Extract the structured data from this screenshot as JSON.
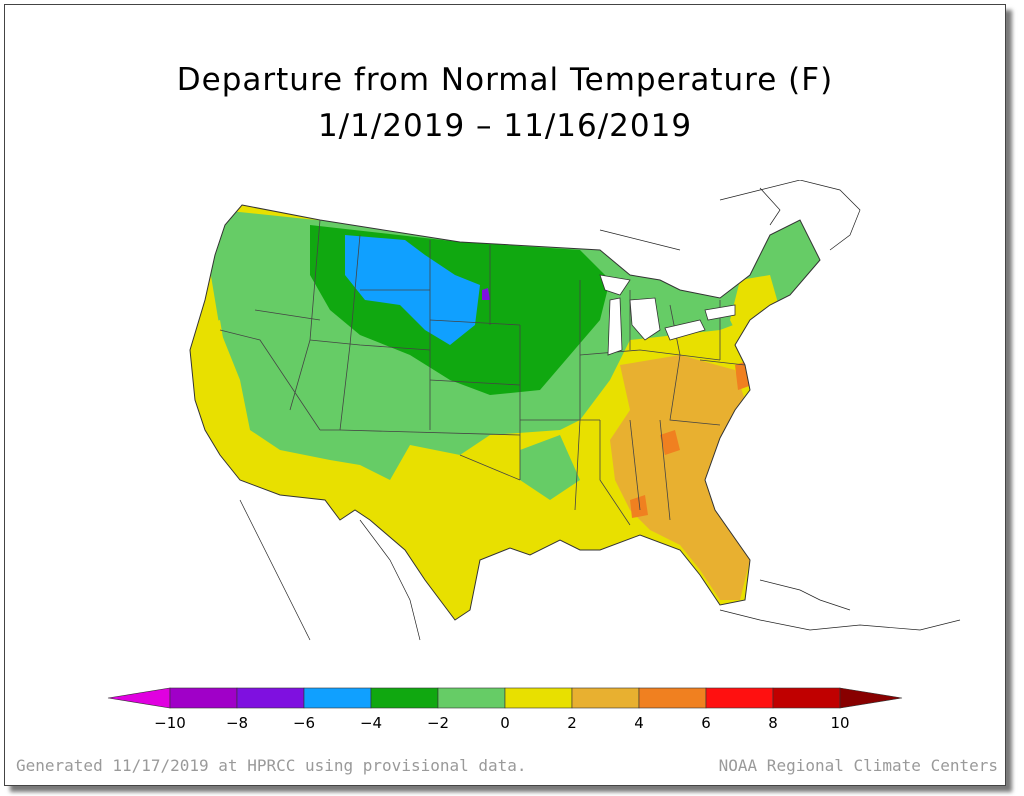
{
  "title": "Departure from Normal Temperature (F)",
  "subtitle": "1/1/2019 – 11/16/2019",
  "legend": {
    "bins": [
      {
        "color": "#e000e0"
      },
      {
        "color": "#a000c8"
      },
      {
        "color": "#7f10e0"
      },
      {
        "color": "#10a0ff"
      },
      {
        "color": "#10a810"
      },
      {
        "color": "#66cc66"
      },
      {
        "color": "#e8e000"
      },
      {
        "color": "#e8b030"
      },
      {
        "color": "#f08020"
      },
      {
        "color": "#ff1010"
      },
      {
        "color": "#c00000"
      },
      {
        "color": "#880000"
      }
    ],
    "labels": [
      "−10",
      "−8",
      "−6",
      "−4",
      "−2",
      "0",
      "2",
      "4",
      "6",
      "8",
      "10"
    ]
  },
  "footer": {
    "generated": "Generated 11/17/2019 at HPRCC using provisional data.",
    "credit": "NOAA Regional Climate Centers"
  }
}
